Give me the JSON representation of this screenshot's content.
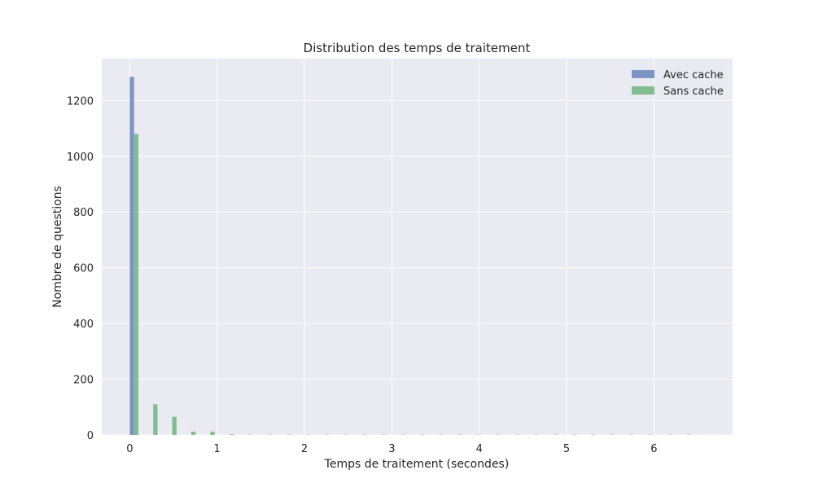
{
  "chart_data": {
    "type": "bar",
    "title": "Distribution des temps de traitement",
    "xlabel": "Temps de traitement (secondes)",
    "ylabel": "Nombre de questions",
    "xlim": [
      -0.32,
      6.9
    ],
    "ylim": [
      0,
      1350
    ],
    "xticks": [
      0,
      1,
      2,
      3,
      4,
      5,
      6
    ],
    "yticks": [
      0,
      200,
      400,
      600,
      800,
      1000,
      1200
    ],
    "grid": true,
    "legend_position": "top-right",
    "bin_width": 0.218,
    "series": [
      {
        "name": "Avec cache",
        "color": "#4c72b0",
        "values": [
          {
            "x": 0.0,
            "y": 1285
          }
        ]
      },
      {
        "name": "Sans cache",
        "color": "#55a868",
        "values": [
          {
            "x": 0.0,
            "y": 1080
          },
          {
            "x": 0.218,
            "y": 110
          },
          {
            "x": 0.436,
            "y": 65
          },
          {
            "x": 0.654,
            "y": 12
          },
          {
            "x": 0.872,
            "y": 12
          },
          {
            "x": 1.09,
            "y": 2
          },
          {
            "x": 1.308,
            "y": 1
          },
          {
            "x": 1.526,
            "y": 1
          },
          {
            "x": 1.744,
            "y": 1
          },
          {
            "x": 1.962,
            "y": 1
          },
          {
            "x": 2.18,
            "y": 1
          },
          {
            "x": 2.398,
            "y": 1
          },
          {
            "x": 2.616,
            "y": 1
          },
          {
            "x": 2.834,
            "y": 1
          },
          {
            "x": 3.052,
            "y": 1
          },
          {
            "x": 3.27,
            "y": 1
          },
          {
            "x": 3.488,
            "y": 1
          },
          {
            "x": 3.706,
            "y": 1
          },
          {
            "x": 3.924,
            "y": 1
          },
          {
            "x": 4.142,
            "y": 1
          },
          {
            "x": 4.36,
            "y": 1
          },
          {
            "x": 4.578,
            "y": 1
          },
          {
            "x": 4.796,
            "y": 1
          },
          {
            "x": 5.014,
            "y": 1
          },
          {
            "x": 5.232,
            "y": 1
          },
          {
            "x": 5.45,
            "y": 1
          },
          {
            "x": 5.668,
            "y": 1
          },
          {
            "x": 5.886,
            "y": 1
          },
          {
            "x": 6.104,
            "y": 1
          },
          {
            "x": 6.322,
            "y": 1
          }
        ]
      }
    ]
  }
}
